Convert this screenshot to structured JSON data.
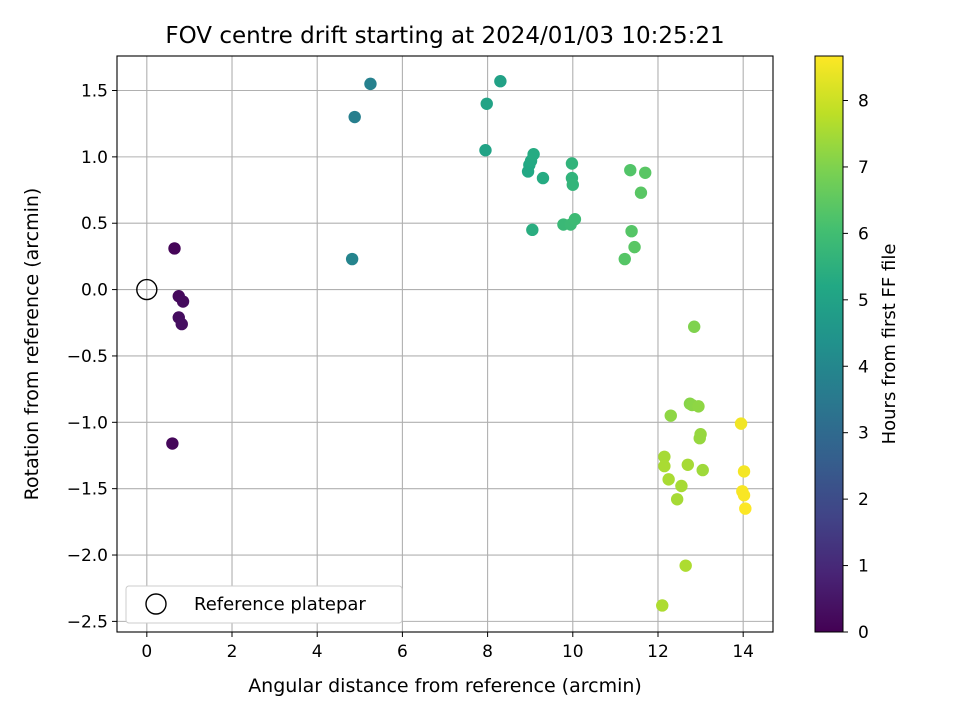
{
  "chart_data": {
    "type": "scatter",
    "title": "FOV centre drift starting at 2024/01/03 10:25:21",
    "xlabel": "Angular distance from reference (arcmin)",
    "ylabel": "Rotation from reference (arcmin)",
    "xlim": [
      -0.7,
      14.7
    ],
    "ylim": [
      -2.58,
      1.76
    ],
    "xticks": [
      0,
      2,
      4,
      6,
      8,
      10,
      12,
      14
    ],
    "yticks": [
      -2.5,
      -2.0,
      -1.5,
      -1.0,
      -0.5,
      0.0,
      0.5,
      1.0,
      1.5
    ],
    "xtick_labels": [
      "0",
      "2",
      "4",
      "6",
      "8",
      "10",
      "12",
      "14"
    ],
    "ytick_labels": [
      "−2.5",
      "−2.0",
      "−1.5",
      "−1.0",
      "−0.5",
      "0.0",
      "0.5",
      "1.0",
      "1.5"
    ],
    "grid": true,
    "legend": {
      "location": "lower-left",
      "entries": [
        "Reference platepar"
      ]
    },
    "colorbar": {
      "label": "Hours from first FF file",
      "colormap": "viridis",
      "range": [
        0,
        8.67
      ],
      "ticks": [
        0,
        1,
        2,
        3,
        4,
        5,
        6,
        7,
        8
      ],
      "tick_labels": [
        "0",
        "1",
        "2",
        "3",
        "4",
        "5",
        "6",
        "7",
        "8"
      ]
    },
    "reference": {
      "x": 0,
      "y": 0,
      "marker": "open-circle"
    },
    "points": [
      {
        "x": 0.65,
        "y": 0.31,
        "c": 0.1
      },
      {
        "x": 0.75,
        "y": -0.05,
        "c": 0.2
      },
      {
        "x": 0.85,
        "y": -0.09,
        "c": 0.25
      },
      {
        "x": 0.75,
        "y": -0.21,
        "c": 0.3
      },
      {
        "x": 0.82,
        "y": -0.26,
        "c": 0.35
      },
      {
        "x": 0.6,
        "y": -1.16,
        "c": 0.15
      },
      {
        "x": 4.82,
        "y": 0.23,
        "c": 3.9
      },
      {
        "x": 4.88,
        "y": 1.3,
        "c": 3.7
      },
      {
        "x": 5.25,
        "y": 1.55,
        "c": 3.8
      },
      {
        "x": 7.95,
        "y": 1.05,
        "c": 5.0
      },
      {
        "x": 7.98,
        "y": 1.4,
        "c": 5.0
      },
      {
        "x": 8.3,
        "y": 1.57,
        "c": 4.95
      },
      {
        "x": 8.95,
        "y": 0.89,
        "c": 5.2
      },
      {
        "x": 8.98,
        "y": 0.94,
        "c": 5.2
      },
      {
        "x": 9.02,
        "y": 0.97,
        "c": 5.25
      },
      {
        "x": 9.08,
        "y": 1.02,
        "c": 5.3
      },
      {
        "x": 9.3,
        "y": 0.84,
        "c": 5.3
      },
      {
        "x": 9.05,
        "y": 0.45,
        "c": 5.4
      },
      {
        "x": 9.78,
        "y": 0.49,
        "c": 5.8
      },
      {
        "x": 9.95,
        "y": 0.49,
        "c": 5.85
      },
      {
        "x": 10.05,
        "y": 0.53,
        "c": 5.9
      },
      {
        "x": 9.98,
        "y": 0.95,
        "c": 5.6
      },
      {
        "x": 9.98,
        "y": 0.84,
        "c": 5.6
      },
      {
        "x": 10.0,
        "y": 0.79,
        "c": 5.65
      },
      {
        "x": 11.35,
        "y": 0.9,
        "c": 6.3
      },
      {
        "x": 11.7,
        "y": 0.88,
        "c": 6.4
      },
      {
        "x": 11.6,
        "y": 0.73,
        "c": 6.4
      },
      {
        "x": 11.38,
        "y": 0.44,
        "c": 6.35
      },
      {
        "x": 11.45,
        "y": 0.32,
        "c": 6.4
      },
      {
        "x": 11.22,
        "y": 0.23,
        "c": 6.35
      },
      {
        "x": 12.85,
        "y": -0.28,
        "c": 7.0
      },
      {
        "x": 12.3,
        "y": -0.95,
        "c": 7.2
      },
      {
        "x": 12.75,
        "y": -0.86,
        "c": 7.1
      },
      {
        "x": 12.8,
        "y": -0.87,
        "c": 7.15
      },
      {
        "x": 12.95,
        "y": -0.88,
        "c": 7.2
      },
      {
        "x": 13.0,
        "y": -1.09,
        "c": 7.3
      },
      {
        "x": 12.98,
        "y": -1.12,
        "c": 7.3
      },
      {
        "x": 12.15,
        "y": -1.26,
        "c": 7.5
      },
      {
        "x": 12.15,
        "y": -1.33,
        "c": 7.55
      },
      {
        "x": 12.7,
        "y": -1.32,
        "c": 7.5
      },
      {
        "x": 13.05,
        "y": -1.36,
        "c": 7.4
      },
      {
        "x": 12.25,
        "y": -1.43,
        "c": 7.55
      },
      {
        "x": 12.55,
        "y": -1.48,
        "c": 7.5
      },
      {
        "x": 12.45,
        "y": -1.58,
        "c": 7.5
      },
      {
        "x": 12.65,
        "y": -2.08,
        "c": 7.6
      },
      {
        "x": 12.1,
        "y": -2.38,
        "c": 7.6
      },
      {
        "x": 13.95,
        "y": -1.01,
        "c": 8.5
      },
      {
        "x": 14.02,
        "y": -1.37,
        "c": 8.55
      },
      {
        "x": 13.98,
        "y": -1.52,
        "c": 8.6
      },
      {
        "x": 14.02,
        "y": -1.55,
        "c": 8.6
      },
      {
        "x": 14.05,
        "y": -1.65,
        "c": 8.65
      }
    ]
  }
}
